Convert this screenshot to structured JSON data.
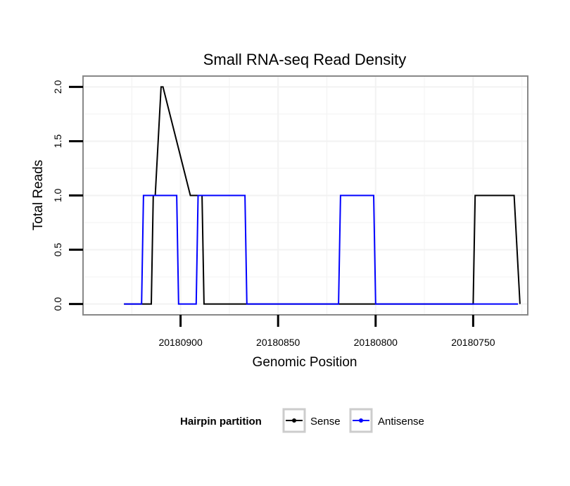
{
  "chart_data": {
    "type": "line",
    "step": true,
    "title": "Small RNA-seq Read Density",
    "xlabel": "Genomic Position",
    "ylabel": "Total Reads",
    "x_reversed": true,
    "xlim": [
      20180950,
      20180722
    ],
    "ylim": [
      -0.1,
      2.1
    ],
    "xticks": [
      20180900,
      20180850,
      20180800,
      20180750
    ],
    "xtick_labels": [
      "20180900",
      "20180850",
      "20180800",
      "20180750"
    ],
    "yticks": [
      0,
      0.5,
      1,
      1.5,
      2
    ],
    "ytick_labels": [
      "0.0",
      "0.5",
      "1.0",
      "1.5",
      "2.0"
    ],
    "grid": true,
    "legend": {
      "title": "Hairpin partition",
      "position": "bottom"
    },
    "series": [
      {
        "name": "Sense",
        "color": "#000000",
        "x": [
          20180929,
          20180915,
          20180914,
          20180913,
          20180910,
          20180909,
          20180895,
          20180894,
          20180889,
          20180888,
          20180750,
          20180749,
          20180729,
          20180726
        ],
        "y": [
          0,
          0,
          1,
          1,
          2,
          2,
          1,
          1,
          1,
          0,
          0,
          1,
          1,
          0
        ]
      },
      {
        "name": "Antisense",
        "color": "#0000ff",
        "x": [
          20180929,
          20180920,
          20180919,
          20180902,
          20180901,
          20180892,
          20180891,
          20180867,
          20180866,
          20180819,
          20180818,
          20180801,
          20180800,
          20180738,
          20180727
        ],
        "y": [
          0,
          0,
          1,
          1,
          0,
          0,
          1,
          1,
          0,
          0,
          1,
          1,
          0,
          0,
          0
        ]
      }
    ]
  }
}
